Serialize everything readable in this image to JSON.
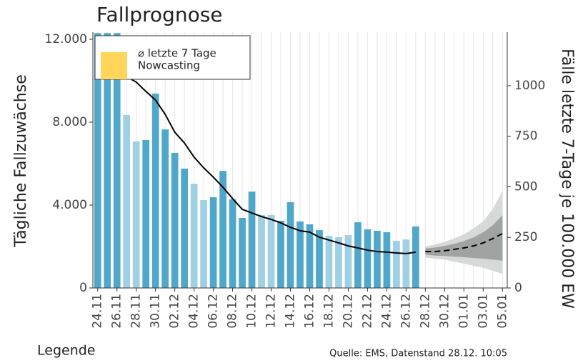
{
  "chart_data": {
    "type": "bar-line-forecast",
    "title": "Fallprognose",
    "ylabel": "Tägliche Fallzuwächse",
    "y2label": "Fälle letzte 7-Tage je 100.000 EW",
    "footer_left": "Legende",
    "source": "Quelle: EMS, Datenstand 28.12. 10:05",
    "categories": [
      "24.11",
      null,
      "26.11",
      null,
      "28.11",
      null,
      "30.11",
      null,
      "02.12",
      null,
      "04.12",
      null,
      "06.12",
      null,
      "08.12",
      null,
      "10.12",
      null,
      "12.12",
      null,
      "14.12",
      null,
      "16.12",
      null,
      "18.12",
      null,
      "20.12",
      null,
      "22.12",
      null,
      "24.12",
      null,
      "26.12",
      null,
      "28.12",
      null,
      "30.12",
      null,
      "01.01",
      null,
      "03.01",
      null,
      "05.01"
    ],
    "bars": {
      "values": [
        12300,
        12300,
        12300,
        8350,
        7070,
        7140,
        9380,
        7650,
        6520,
        5760,
        5030,
        4240,
        4380,
        5650,
        4280,
        3380,
        4650,
        3520,
        3520,
        3240,
        4140,
        3210,
        3070,
        2790,
        2520,
        2450,
        2550,
        3170,
        2830,
        2760,
        2690,
        2280,
        2340,
        2970,
        null,
        null,
        null,
        null,
        null,
        null,
        null,
        null,
        null
      ],
      "colors": [
        "#4fa8ca",
        "#4fa8ca",
        "#4fa8ca",
        "#9fd0e3",
        "#9fd0e3",
        "#4fa8ca",
        "#4fa8ca",
        "#4fa8ca",
        "#4fa8ca",
        "#4fa8ca",
        "#9fd0e3",
        "#9fd0e3",
        "#4fa8ca",
        "#4fa8ca",
        "#4fa8ca",
        "#4fa8ca",
        "#4fa8ca",
        "#9fd0e3",
        "#9fd0e3",
        "#4fa8ca",
        "#4fa8ca",
        "#4fa8ca",
        "#4fa8ca",
        "#4fa8ca",
        "#9fd0e3",
        "#9fd0e3",
        "#9fd0e3",
        "#4fa8ca",
        "#4fa8ca",
        "#4fa8ca",
        "#4fa8ca",
        "#9fd0e3",
        "#9fd0e3",
        "#4fa8ca",
        null,
        null,
        null,
        null,
        null,
        null,
        null,
        null,
        null
      ]
    },
    "series": [
      {
        "name": "⌀ letzte 7 Tage",
        "color": "#000000",
        "axis": "y2",
        "values": [
          null,
          null,
          1070,
          1045,
          1018,
          972,
          929,
          859,
          770,
          717,
          647,
          594,
          548,
          498,
          442,
          389,
          371,
          353,
          339,
          322,
          300,
          283,
          276,
          251,
          237,
          223,
          208,
          198,
          187,
          180,
          177,
          173,
          170,
          177,
          null,
          null,
          null,
          null,
          null,
          null,
          null,
          null,
          null
        ]
      },
      {
        "color": "#000000",
        "axis": "y2",
        "dashed": true,
        "values": [
          null,
          null,
          null,
          null,
          null,
          null,
          null,
          null,
          null,
          null,
          null,
          null,
          null,
          null,
          null,
          null,
          null,
          null,
          null,
          null,
          null,
          null,
          null,
          null,
          null,
          null,
          null,
          null,
          null,
          null,
          null,
          null,
          null,
          null,
          180,
          180,
          184,
          191,
          198,
          208,
          223,
          244,
          269
        ]
      }
    ],
    "bands": [
      {
        "color": "#d6d9d8",
        "start": 34,
        "upper": [
          205,
          215,
          228,
          245,
          265,
          295,
          330,
          390,
          480
        ],
        "lower": [
          150,
          145,
          140,
          130,
          120,
          110,
          100,
          85,
          70
        ]
      },
      {
        "color": "#9fa3a2",
        "start": 34,
        "upper": [
          195,
          200,
          208,
          218,
          232,
          250,
          275,
          310,
          360
        ],
        "lower": [
          165,
          160,
          158,
          155,
          152,
          148,
          145,
          140,
          135
        ]
      }
    ],
    "legend": [
      {
        "label": "⌀ letzte 7 Tage",
        "kind": "line",
        "color": "#000000"
      },
      {
        "label": "Nowcasting",
        "kind": "box",
        "color": "#ffd65a"
      }
    ],
    "ylim": [
      0,
      12345
    ],
    "yticks": [
      0,
      {
        "value": 4000,
        "label": "4.000"
      },
      {
        "value": 8000,
        "label": "8.000"
      },
      {
        "value": 12000,
        "label": "12.000"
      }
    ],
    "y2lim": [
      0,
      1265
    ],
    "y2ticks": [
      0,
      250,
      500,
      750,
      1000
    ],
    "grid": true
  }
}
